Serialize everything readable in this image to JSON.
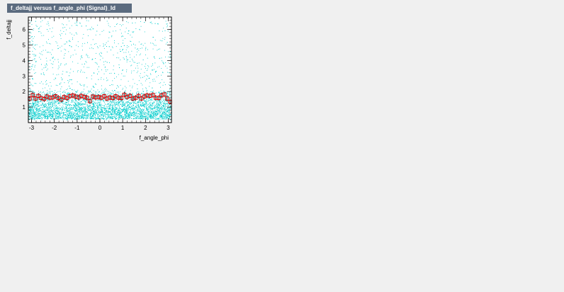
{
  "window": {
    "title": "f_deltajj versus f_angle_phi (Signal)_Id"
  },
  "colors": {
    "background": "#f0f0f0",
    "title_bar": "#5b6b7f",
    "scatter": "#00cccc",
    "profile": "#dd0000"
  },
  "chart_data": {
    "type": "scatter",
    "title": "f_deltajj versus f_angle_phi (Signal)_Id",
    "xlabel": "f_angle_phi",
    "ylabel": "f_deltajj",
    "xlim": [
      -3.1416,
      3.1416
    ],
    "ylim": [
      0,
      6.8
    ],
    "xticks": [
      -3,
      -2,
      -1,
      0,
      1,
      2,
      3
    ],
    "yticks": [
      1,
      2,
      3,
      4,
      5,
      6
    ],
    "grid": false,
    "legend": "none",
    "series": [
      {
        "style": "dots",
        "description_points": "dense uniform band in x; y concentrated below ~2, thinning upward to ~6.5",
        "n_points_approx": 5000
      },
      {
        "style": "profile-markers",
        "x": [
          -3.08,
          -2.95,
          -2.83,
          -2.7,
          -2.58,
          -2.45,
          -2.33,
          -2.2,
          -2.07,
          -1.95,
          -1.82,
          -1.7,
          -1.57,
          -1.45,
          -1.32,
          -1.19,
          -1.07,
          -0.94,
          -0.82,
          -0.69,
          -0.57,
          -0.44,
          -0.31,
          -0.19,
          -0.06,
          0.06,
          0.19,
          0.31,
          0.44,
          0.57,
          0.69,
          0.82,
          0.94,
          1.07,
          1.19,
          1.32,
          1.45,
          1.57,
          1.7,
          1.82,
          1.95,
          2.07,
          2.2,
          2.33,
          2.45,
          2.58,
          2.7,
          2.83,
          2.95,
          3.08
        ],
        "y": [
          1.55,
          1.78,
          1.55,
          1.72,
          1.58,
          1.52,
          1.68,
          1.6,
          1.62,
          1.7,
          1.58,
          1.48,
          1.65,
          1.58,
          1.7,
          1.75,
          1.68,
          1.62,
          1.72,
          1.66,
          1.6,
          1.38,
          1.68,
          1.62,
          1.65,
          1.6,
          1.7,
          1.55,
          1.62,
          1.58,
          1.7,
          1.6,
          1.58,
          1.8,
          1.65,
          1.72,
          1.55,
          1.6,
          1.72,
          1.55,
          1.68,
          1.75,
          1.72,
          1.78,
          1.6,
          1.58,
          1.75,
          1.82,
          1.55,
          1.35
        ]
      }
    ]
  }
}
